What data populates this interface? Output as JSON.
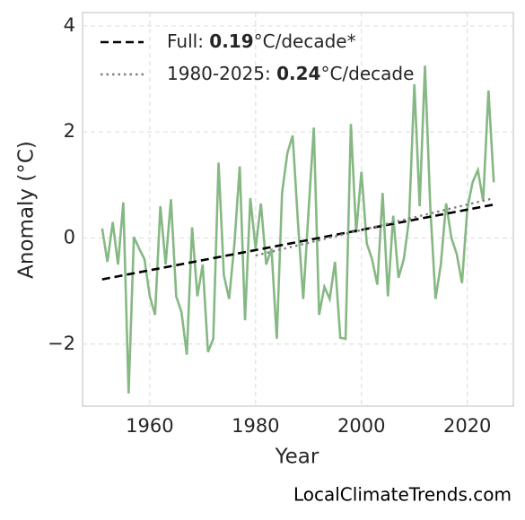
{
  "chart_data": {
    "type": "line",
    "xlabel": "Year",
    "ylabel": "Anomaly (°C)",
    "watermark": "LocalClimateTrends.com",
    "xlim": [
      1947.3,
      2028.7
    ],
    "ylim": [
      -3.17,
      4.25
    ],
    "xticks": [
      1960,
      1980,
      2000,
      2020
    ],
    "yticks": [
      {
        "value": -2,
        "label": "−2"
      },
      0,
      2,
      4
    ],
    "grid": true,
    "legend": "upper left",
    "series": [
      {
        "color": "#86b883",
        "style": "solid",
        "x": [
          1951,
          1952,
          1953,
          1954,
          1955,
          1956,
          1957,
          1958,
          1959,
          1960,
          1961,
          1962,
          1963,
          1964,
          1965,
          1966,
          1967,
          1968,
          1969,
          1970,
          1971,
          1972,
          1973,
          1974,
          1975,
          1976,
          1977,
          1978,
          1979,
          1980,
          1981,
          1982,
          1983,
          1984,
          1985,
          1986,
          1987,
          1988,
          1989,
          1990,
          1991,
          1992,
          1993,
          1994,
          1995,
          1996,
          1997,
          1998,
          1999,
          2000,
          2001,
          2002,
          2003,
          2004,
          2005,
          2006,
          2007,
          2008,
          2009,
          2010,
          2011,
          2012,
          2013,
          2014,
          2015,
          2016,
          2017,
          2018,
          2019,
          2020,
          2021,
          2022,
          2023,
          2024,
          2025
        ],
        "values": [
          0.18,
          -0.45,
          0.3,
          -0.5,
          0.67,
          -2.93,
          0.02,
          -0.2,
          -0.4,
          -1.1,
          -1.45,
          0.6,
          -0.5,
          0.73,
          -1.1,
          -1.4,
          -2.2,
          0.2,
          -1.1,
          -0.5,
          -2.15,
          -1.9,
          1.42,
          -0.7,
          -1.15,
          -0.1,
          1.35,
          -1.55,
          0.75,
          -0.2,
          0.65,
          -0.5,
          -0.2,
          -1.9,
          0.85,
          1.6,
          1.93,
          0.3,
          -1.15,
          0.5,
          2.08,
          -1.45,
          -0.92,
          -1.15,
          -0.45,
          -1.88,
          -1.9,
          2.15,
          0.1,
          1.25,
          -0.1,
          -0.4,
          -0.88,
          0.85,
          -1.1,
          0.42,
          -0.75,
          -0.4,
          0.35,
          2.9,
          0.6,
          3.25,
          0.6,
          -1.15,
          -0.5,
          0.65,
          0.0,
          -0.3,
          -0.85,
          0.55,
          1.05,
          1.28,
          0.7,
          2.78,
          1.05
        ]
      },
      {
        "name": [
          "Full: ",
          "0.19",
          "°C/decade*"
        ],
        "color": "#000000",
        "style": "dashed",
        "x": [
          1951,
          2025
        ],
        "values": [
          -0.78,
          0.63
        ]
      },
      {
        "name": [
          "1980-2025: ",
          "0.24",
          "°C/decade"
        ],
        "color": "#808080",
        "style": "dotted",
        "x": [
          1980,
          2025
        ],
        "values": [
          -0.33,
          0.75
        ]
      }
    ]
  }
}
